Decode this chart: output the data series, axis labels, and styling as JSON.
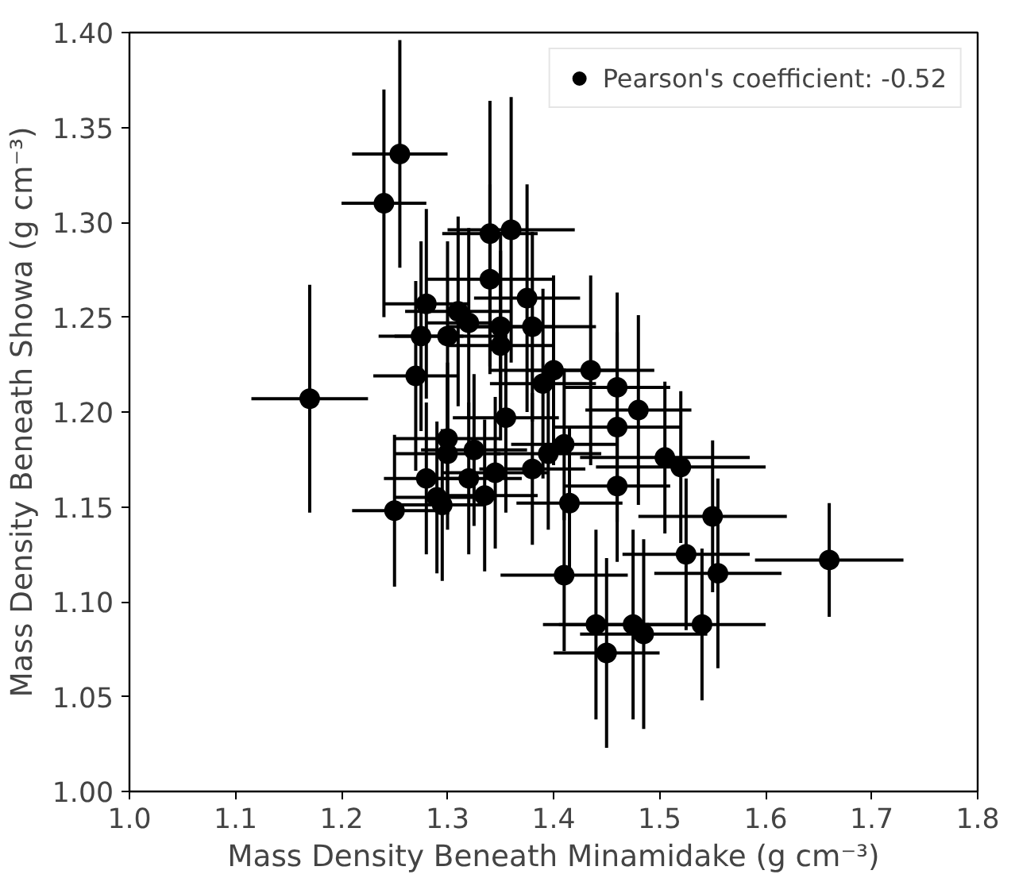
{
  "chart_data": {
    "type": "scatter",
    "xlabel": "Mass Density Beneath Minamidake (g cm⁻³)",
    "ylabel": "Mass Density Beneath Showa (g cm⁻³)",
    "series": [
      {
        "name": "Pearson's coefficient: -0.52",
        "color": "#000000",
        "x": [
          1.17,
          1.24,
          1.255,
          1.34,
          1.36,
          1.28,
          1.34,
          1.31,
          1.32,
          1.35,
          1.375,
          1.38,
          1.275,
          1.3,
          1.35,
          1.27,
          1.4,
          1.39,
          1.435,
          1.46,
          1.48,
          1.46,
          1.355,
          1.3,
          1.3,
          1.325,
          1.395,
          1.41,
          1.38,
          1.345,
          1.32,
          1.28,
          1.29,
          1.295,
          1.25,
          1.335,
          1.415,
          1.46,
          1.505,
          1.52,
          1.55,
          1.525,
          1.555,
          1.66,
          1.41,
          1.44,
          1.475,
          1.485,
          1.45,
          1.54
        ],
        "values": [
          1.207,
          1.31,
          1.336,
          1.294,
          1.296,
          1.257,
          1.27,
          1.253,
          1.247,
          1.245,
          1.26,
          1.245,
          1.24,
          1.24,
          1.235,
          1.219,
          1.222,
          1.215,
          1.222,
          1.213,
          1.201,
          1.192,
          1.197,
          1.186,
          1.178,
          1.18,
          1.178,
          1.183,
          1.17,
          1.168,
          1.165,
          1.165,
          1.155,
          1.151,
          1.148,
          1.156,
          1.152,
          1.161,
          1.176,
          1.171,
          1.145,
          1.125,
          1.115,
          1.122,
          1.114,
          1.088,
          1.088,
          1.083,
          1.073,
          1.088
        ],
        "xerrors": [
          0.055,
          0.04,
          0.045,
          0.045,
          0.06,
          0.04,
          0.06,
          0.05,
          0.04,
          0.05,
          0.05,
          0.06,
          0.04,
          0.05,
          0.05,
          0.04,
          0.06,
          0.05,
          0.06,
          0.05,
          0.05,
          0.06,
          0.05,
          0.05,
          0.05,
          0.05,
          0.05,
          0.05,
          0.05,
          0.05,
          0.05,
          0.04,
          0.04,
          0.04,
          0.04,
          0.05,
          0.05,
          0.05,
          0.08,
          0.08,
          0.07,
          0.06,
          0.06,
          0.07,
          0.06,
          0.05,
          0.07,
          0.06,
          0.05,
          0.06
        ],
        "errors": [
          0.06,
          0.06,
          0.06,
          0.07,
          0.07,
          0.05,
          0.05,
          0.05,
          0.05,
          0.05,
          0.06,
          0.05,
          0.05,
          0.05,
          0.05,
          0.05,
          0.05,
          0.05,
          0.05,
          0.05,
          0.05,
          0.05,
          0.05,
          0.04,
          0.04,
          0.04,
          0.04,
          0.04,
          0.04,
          0.04,
          0.04,
          0.04,
          0.04,
          0.04,
          0.04,
          0.04,
          0.04,
          0.04,
          0.04,
          0.04,
          0.04,
          0.04,
          0.05,
          0.03,
          0.04,
          0.05,
          0.05,
          0.05,
          0.05,
          0.04
        ]
      }
    ],
    "xlim": [
      1.0,
      1.8
    ],
    "ylim": [
      1.0,
      1.4
    ],
    "xticks": [
      {
        "value": 1.0,
        "label": "1.0"
      },
      {
        "value": 1.1,
        "label": "1.1"
      },
      {
        "value": 1.2,
        "label": "1.2"
      },
      {
        "value": 1.3,
        "label": "1.3"
      },
      {
        "value": 1.4,
        "label": "1.4"
      },
      {
        "value": 1.5,
        "label": "1.5"
      },
      {
        "value": 1.6,
        "label": "1.6"
      },
      {
        "value": 1.7,
        "label": "1.7"
      },
      {
        "value": 1.8,
        "label": "1.8"
      }
    ],
    "yticks": [
      {
        "value": 1.0,
        "label": "1.00"
      },
      {
        "value": 1.05,
        "label": "1.05"
      },
      {
        "value": 1.1,
        "label": "1.10"
      },
      {
        "value": 1.15,
        "label": "1.15"
      },
      {
        "value": 1.2,
        "label": "1.20"
      },
      {
        "value": 1.25,
        "label": "1.25"
      },
      {
        "value": 1.3,
        "label": "1.30"
      },
      {
        "value": 1.35,
        "label": "1.35"
      },
      {
        "value": 1.4,
        "label": "1.40"
      }
    ],
    "grid": false,
    "legend": "top right",
    "marker": "circle"
  }
}
